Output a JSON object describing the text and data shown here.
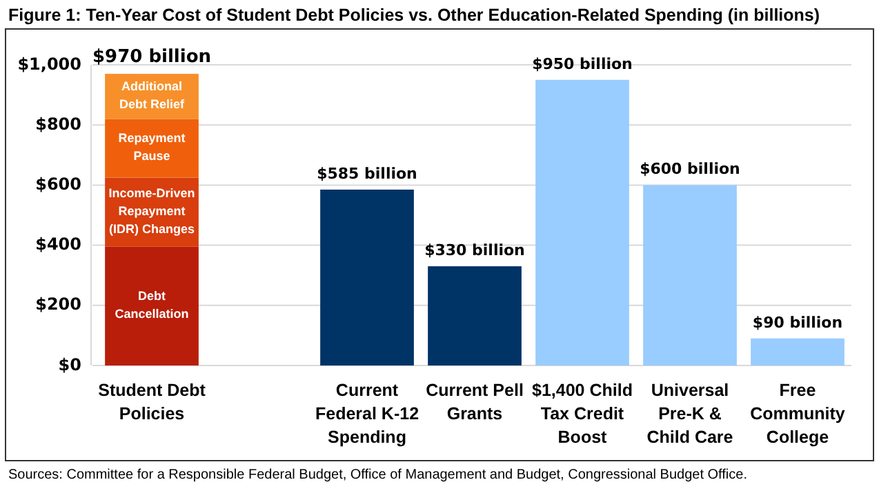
{
  "chart_data": {
    "type": "bar",
    "title": "Figure 1: Ten-Year Cost of Student Debt Policies vs. Other Education-Related Spending (in billions)",
    "categories": [
      "Student Debt Policies",
      null,
      "Current Federal K-12 Spending",
      "Current Pell Grants",
      "$1,400 Child Tax Credit Boost",
      "Universal Pre-K & Child Care",
      "Free Community College"
    ],
    "stacked": true,
    "series": [
      {
        "name": "Debt Cancellation",
        "color": "#b81e0a",
        "values": [
          395,
          null,
          null,
          null,
          null,
          null,
          null
        ]
      },
      {
        "name": "Income-Driven Repayment (IDR) Changes",
        "color": "#d83e0e",
        "values": [
          230,
          null,
          null,
          null,
          null,
          null,
          null
        ]
      },
      {
        "name": "Repayment Pause",
        "color": "#f0600c",
        "values": [
          195,
          null,
          null,
          null,
          null,
          null,
          null
        ]
      },
      {
        "name": "Additional Debt Relief",
        "color": "#f7902a",
        "values": [
          150,
          null,
          null,
          null,
          null,
          null,
          null
        ]
      },
      {
        "color": "#003366",
        "values": [
          null,
          null,
          585,
          330,
          null,
          null,
          null
        ]
      },
      {
        "color": "#99ccff",
        "values": [
          null,
          null,
          null,
          null,
          950,
          600,
          90
        ]
      }
    ],
    "totals": [
      "$970 billion",
      null,
      "$585 billion",
      "$330 billion",
      "$950 billion",
      "$600 billion",
      "$90 billion"
    ],
    "ylim": [
      0,
      1000
    ],
    "yticks": [
      {
        "value": 0,
        "label": "$0"
      },
      {
        "value": 200,
        "label": "$200"
      },
      {
        "value": 400,
        "label": "$400"
      },
      {
        "value": 600,
        "label": "$600"
      },
      {
        "value": 800,
        "label": "$800"
      },
      {
        "value": 1000,
        "label": "$1,000"
      }
    ],
    "grid": "y",
    "annotations": [
      "Sources: Committee for a Responsible Federal Budget, Office of Management and Budget, Congressional Budget Office."
    ]
  }
}
